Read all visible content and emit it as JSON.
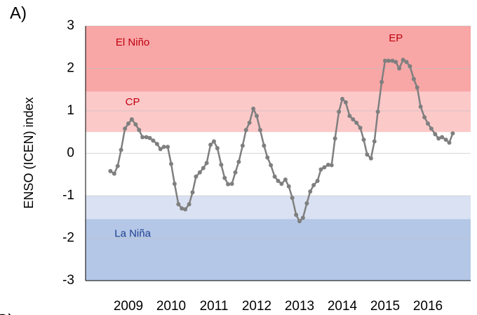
{
  "chart_data": {
    "type": "line",
    "panel_label": "A)",
    "next_panel_label": "C)",
    "y_label": "ENSO (ICEN) index",
    "xlim": [
      2008,
      2017
    ],
    "xticks": [
      2009,
      2010,
      2011,
      2012,
      2013,
      2014,
      2015,
      2016
    ],
    "ylim": [
      -3,
      3
    ],
    "yticks": [
      -3,
      -2,
      -1,
      0,
      1,
      2,
      3
    ],
    "grid": true,
    "bands": [
      {
        "from": 1.45,
        "to": 3,
        "color": "#f8a6a6"
      },
      {
        "from": 0.5,
        "to": 1.45,
        "color": "#fcc9c9"
      },
      {
        "from": -1.55,
        "to": -1,
        "color": "#d9e1f2"
      },
      {
        "from": -3,
        "to": -1.55,
        "color": "#b4c7e7"
      }
    ],
    "annotations": [
      "El Niño",
      "CP",
      "EP",
      "La Niña"
    ],
    "series": [
      {
        "name": "ICEN",
        "color": "#7f7f7f",
        "x": [
          2008.58,
          2008.67,
          2008.75,
          2008.83,
          2008.92,
          2009.0,
          2009.08,
          2009.17,
          2009.25,
          2009.33,
          2009.42,
          2009.5,
          2009.58,
          2009.67,
          2009.75,
          2009.83,
          2009.92,
          2010.0,
          2010.08,
          2010.17,
          2010.25,
          2010.33,
          2010.42,
          2010.5,
          2010.58,
          2010.67,
          2010.75,
          2010.83,
          2010.92,
          2011.0,
          2011.08,
          2011.17,
          2011.25,
          2011.33,
          2011.42,
          2011.5,
          2011.58,
          2011.67,
          2011.75,
          2011.83,
          2011.92,
          2012.0,
          2012.08,
          2012.17,
          2012.25,
          2012.33,
          2012.42,
          2012.5,
          2012.58,
          2012.67,
          2012.75,
          2012.83,
          2012.92,
          2013.0,
          2013.08,
          2013.17,
          2013.25,
          2013.33,
          2013.42,
          2013.5,
          2013.58,
          2013.67,
          2013.75,
          2013.83,
          2013.92,
          2014.0,
          2014.08,
          2014.17,
          2014.25,
          2014.33,
          2014.42,
          2014.5,
          2014.58,
          2014.67,
          2014.75,
          2014.83,
          2014.92,
          2015.0,
          2015.08,
          2015.17,
          2015.25,
          2015.33,
          2015.42,
          2015.5,
          2015.58,
          2015.67,
          2015.75,
          2015.83,
          2015.92,
          2016.0,
          2016.08,
          2016.17,
          2016.25,
          2016.33,
          2016.42,
          2016.5,
          2016.58
        ],
        "values": [
          -0.42,
          -0.48,
          -0.3,
          0.08,
          0.58,
          0.7,
          0.8,
          0.68,
          0.55,
          0.38,
          0.38,
          0.36,
          0.3,
          0.22,
          0.1,
          0.15,
          0.15,
          -0.25,
          -0.72,
          -1.2,
          -1.3,
          -1.32,
          -1.2,
          -0.92,
          -0.55,
          -0.45,
          -0.35,
          -0.23,
          0.2,
          0.28,
          0.12,
          -0.27,
          -0.58,
          -0.73,
          -0.72,
          -0.45,
          -0.2,
          0.18,
          0.55,
          0.72,
          1.05,
          0.88,
          0.55,
          0.18,
          -0.1,
          -0.28,
          -0.55,
          -0.65,
          -0.72,
          -0.62,
          -0.78,
          -1.05,
          -1.45,
          -1.6,
          -1.52,
          -1.18,
          -0.9,
          -0.75,
          -0.65,
          -0.38,
          -0.33,
          -0.27,
          -0.28,
          0.35,
          0.98,
          1.28,
          1.2,
          0.88,
          0.8,
          0.72,
          0.6,
          0.32,
          -0.03,
          -0.12,
          0.28,
          0.98,
          1.68,
          2.18,
          2.18,
          2.18,
          2.15,
          2.0,
          2.2,
          2.15,
          2.05,
          1.75,
          1.55,
          1.1,
          0.85,
          0.7,
          0.58,
          0.45,
          0.35,
          0.38,
          0.32,
          0.25,
          0.47
        ]
      }
    ]
  }
}
